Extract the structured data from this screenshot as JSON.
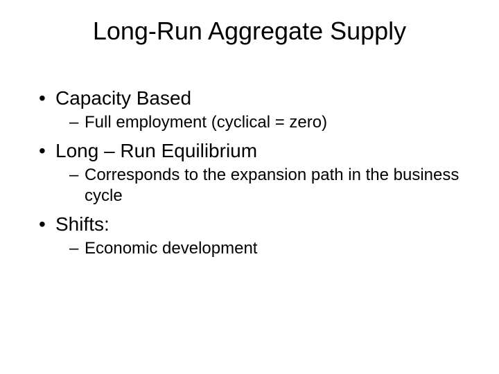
{
  "slide": {
    "title": "Long-Run Aggregate Supply",
    "bullets": [
      {
        "text": "Capacity Based",
        "sub": [
          {
            "text": "Full employment (cyclical = zero)"
          }
        ]
      },
      {
        "text": "Long – Run Equilibrium",
        "sub": [
          {
            "text": "Corresponds to the expansion path in the business cycle"
          }
        ]
      },
      {
        "text": "Shifts:",
        "sub": [
          {
            "text": "Economic development"
          }
        ]
      }
    ],
    "colors": {
      "background": "#ffffff",
      "text": "#000000"
    },
    "typography": {
      "font_family": "Arial",
      "title_fontsize": 36,
      "level1_fontsize": 28,
      "level2_fontsize": 24
    }
  }
}
